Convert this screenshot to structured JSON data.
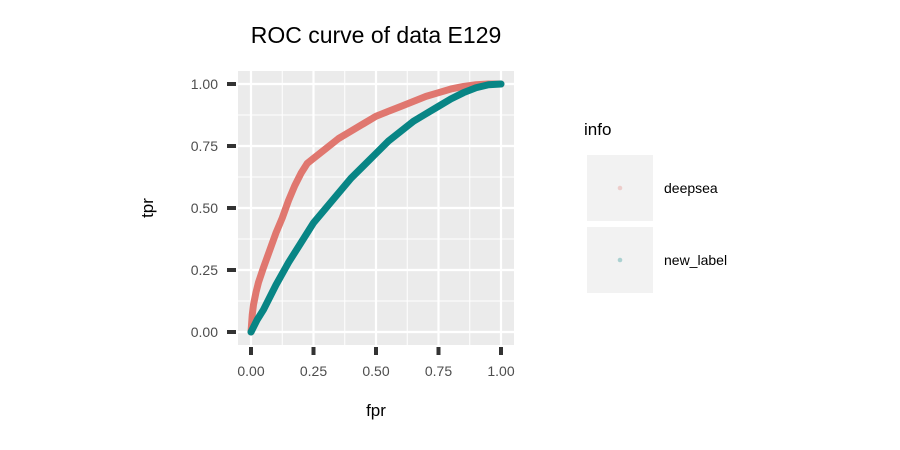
{
  "chart_data": {
    "type": "line",
    "title": "ROC curve of data E129",
    "xlabel": "fpr",
    "ylabel": "tpr",
    "xlim": [
      0,
      1
    ],
    "ylim": [
      0,
      1
    ],
    "x_ticks": [
      "0.00",
      "0.25",
      "0.50",
      "0.75",
      "1.00"
    ],
    "y_ticks": [
      "0.00",
      "0.25",
      "0.50",
      "0.75",
      "1.00"
    ],
    "grid": true,
    "legend": {
      "title": "info",
      "position": "right"
    },
    "series": [
      {
        "name": "deepsea",
        "color": "#E0776F",
        "x": [
          0,
          0.005,
          0.01,
          0.02,
          0.03,
          0.05,
          0.075,
          0.1,
          0.125,
          0.15,
          0.175,
          0.2,
          0.225,
          0.25,
          0.3,
          0.35,
          0.4,
          0.45,
          0.5,
          0.55,
          0.6,
          0.65,
          0.7,
          0.75,
          0.8,
          0.85,
          0.9,
          0.95,
          1.0
        ],
        "y": [
          0,
          0.07,
          0.11,
          0.16,
          0.2,
          0.26,
          0.33,
          0.4,
          0.46,
          0.53,
          0.59,
          0.64,
          0.68,
          0.7,
          0.74,
          0.78,
          0.81,
          0.84,
          0.87,
          0.89,
          0.91,
          0.93,
          0.95,
          0.965,
          0.98,
          0.99,
          0.997,
          1.0,
          1.0
        ]
      },
      {
        "name": "new_label",
        "color": "#088585",
        "x": [
          0,
          0.01,
          0.025,
          0.05,
          0.1,
          0.15,
          0.2,
          0.25,
          0.3,
          0.35,
          0.4,
          0.45,
          0.5,
          0.55,
          0.6,
          0.65,
          0.7,
          0.75,
          0.8,
          0.85,
          0.9,
          0.95,
          1.0
        ],
        "y": [
          0,
          0.02,
          0.05,
          0.09,
          0.19,
          0.28,
          0.36,
          0.44,
          0.5,
          0.56,
          0.62,
          0.67,
          0.72,
          0.77,
          0.81,
          0.85,
          0.88,
          0.91,
          0.94,
          0.965,
          0.985,
          0.997,
          1.0
        ]
      }
    ]
  }
}
